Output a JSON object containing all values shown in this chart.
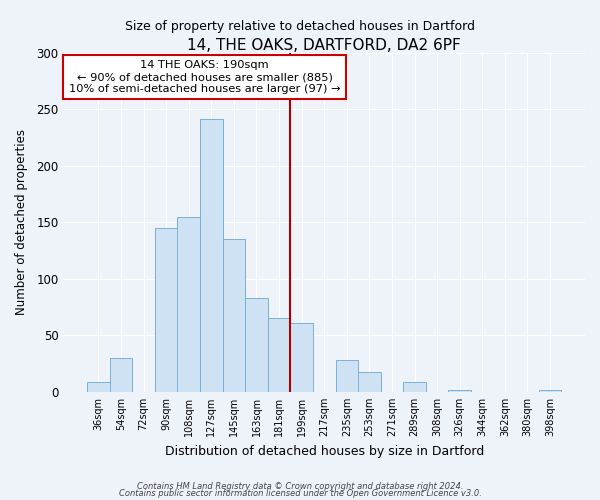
{
  "title": "14, THE OAKS, DARTFORD, DA2 6PF",
  "subtitle": "Size of property relative to detached houses in Dartford",
  "xlabel": "Distribution of detached houses by size in Dartford",
  "ylabel": "Number of detached properties",
  "bar_labels": [
    "36sqm",
    "54sqm",
    "72sqm",
    "90sqm",
    "108sqm",
    "127sqm",
    "145sqm",
    "163sqm",
    "181sqm",
    "199sqm",
    "217sqm",
    "235sqm",
    "253sqm",
    "271sqm",
    "289sqm",
    "308sqm",
    "326sqm",
    "344sqm",
    "362sqm",
    "380sqm",
    "398sqm"
  ],
  "bar_values": [
    9,
    30,
    0,
    145,
    155,
    241,
    135,
    83,
    65,
    61,
    0,
    28,
    18,
    0,
    9,
    0,
    2,
    0,
    0,
    0,
    2
  ],
  "bar_color": "#cfe2f3",
  "bar_edge_color": "#7ab0d8",
  "vline_color": "#aa0000",
  "vline_position": 9.0,
  "annotation_title": "14 THE OAKS: 190sqm",
  "annotation_line1": "← 90% of detached houses are smaller (885)",
  "annotation_line2": "10% of semi-detached houses are larger (97) →",
  "annotation_box_color": "#ffffff",
  "annotation_box_edge": "#cc0000",
  "ylim": [
    0,
    300
  ],
  "yticks": [
    0,
    50,
    100,
    150,
    200,
    250,
    300
  ],
  "footer1": "Contains HM Land Registry data © Crown copyright and database right 2024.",
  "footer2": "Contains public sector information licensed under the Open Government Licence v3.0.",
  "background_color": "#eef2f9",
  "grid_color": "#ffffff",
  "title_fontsize": 11,
  "subtitle_fontsize": 9
}
